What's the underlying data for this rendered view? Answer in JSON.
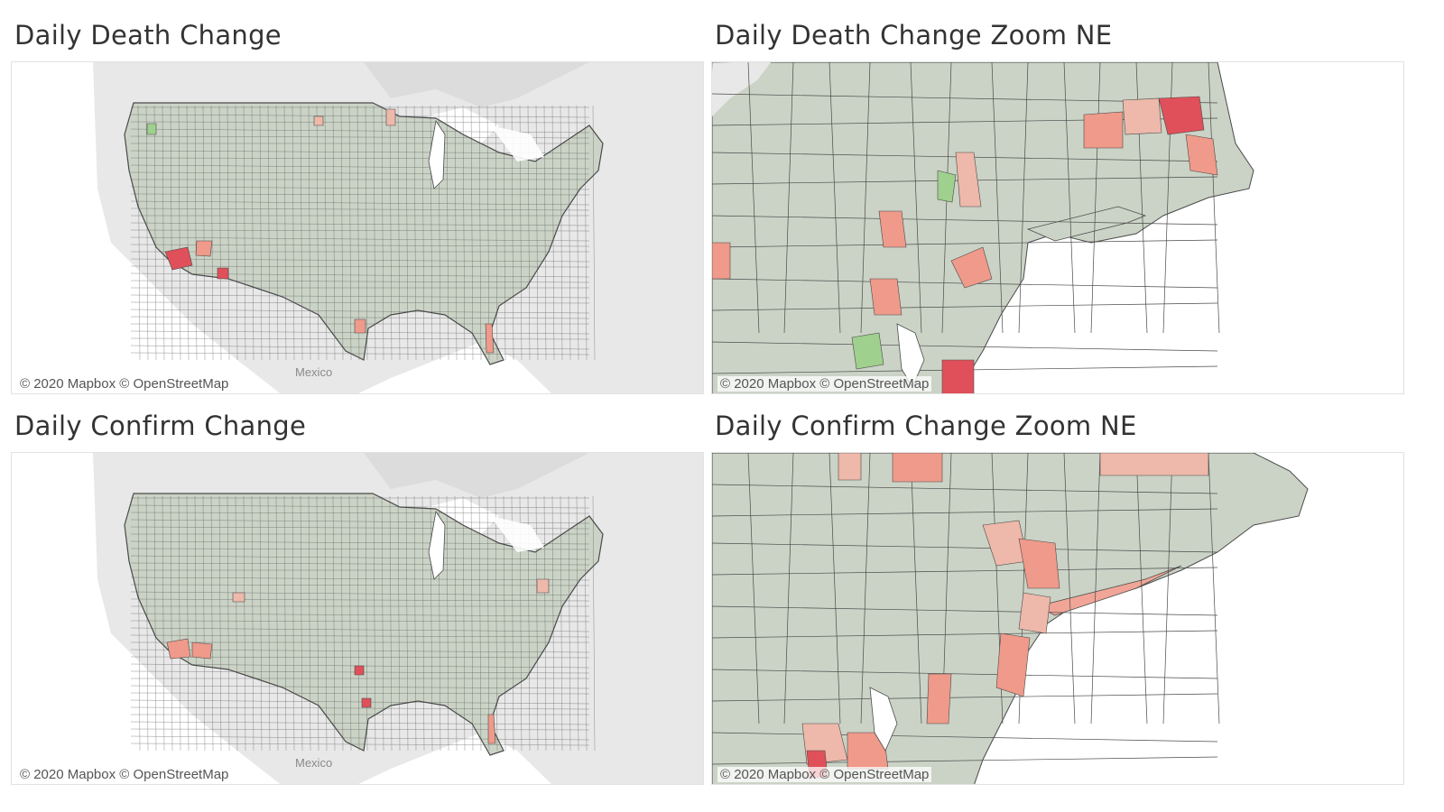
{
  "panels": [
    {
      "title": "Daily Death Change",
      "attribution": "© 2020 Mapbox © OpenStreetMap",
      "place_label": "Mexico",
      "view": "national",
      "focus": "death"
    },
    {
      "title": "Daily Death Change Zoom NE",
      "attribution": "© 2020 Mapbox © OpenStreetMap",
      "view": "northeast",
      "focus": "death"
    },
    {
      "title": "Daily Confirm Change",
      "attribution": "© 2020 Mapbox © OpenStreetMap",
      "place_label": "Mexico",
      "view": "national",
      "focus": "confirm"
    },
    {
      "title": "Daily Confirm Change Zoom NE",
      "attribution": "© 2020 Mapbox © OpenStreetMap",
      "view": "northeast",
      "focus": "confirm"
    }
  ],
  "colors": {
    "county_neutral": "#cbd3c6",
    "county_border": "#4a4a4a",
    "increase_light": "#eeb8aa",
    "increase_mid": "#ef9a8a",
    "increase_high": "#e0505a",
    "decrease": "#9fd08e",
    "basemap_land": "#e6e6e6",
    "basemap_water": "#ffffff"
  }
}
